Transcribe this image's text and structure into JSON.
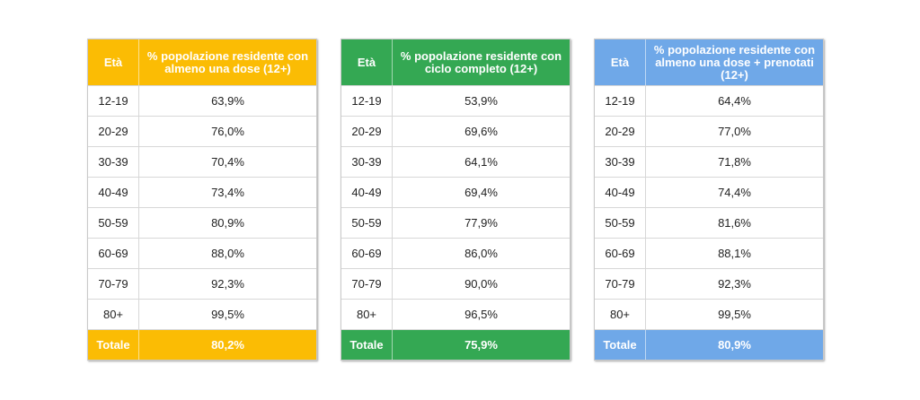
{
  "chart_data": [
    {
      "type": "table",
      "color": "#fbbc04",
      "columns": [
        "Età",
        "% popolazione residente con almeno una dose (12+)"
      ],
      "rows": [
        [
          "12-19",
          "63,9%"
        ],
        [
          "20-29",
          "76,0%"
        ],
        [
          "30-39",
          "70,4%"
        ],
        [
          "40-49",
          "73,4%"
        ],
        [
          "50-59",
          "80,9%"
        ],
        [
          "60-69",
          "88,0%"
        ],
        [
          "70-79",
          "92,3%"
        ],
        [
          "80+",
          "99,5%"
        ]
      ],
      "total": [
        "Totale",
        "80,2%"
      ]
    },
    {
      "type": "table",
      "color": "#34a853",
      "columns": [
        "Età",
        "% popolazione residente con ciclo completo (12+)"
      ],
      "rows": [
        [
          "12-19",
          "53,9%"
        ],
        [
          "20-29",
          "69,6%"
        ],
        [
          "30-39",
          "64,1%"
        ],
        [
          "40-49",
          "69,4%"
        ],
        [
          "50-59",
          "77,9%"
        ],
        [
          "60-69",
          "86,0%"
        ],
        [
          "70-79",
          "90,0%"
        ],
        [
          "80+",
          "96,5%"
        ]
      ],
      "total": [
        "Totale",
        "75,9%"
      ]
    },
    {
      "type": "table",
      "color": "#6fa8e8",
      "columns": [
        "Età",
        "% popolazione residente con almeno una dose + prenotati (12+)"
      ],
      "rows": [
        [
          "12-19",
          "64,4%"
        ],
        [
          "20-29",
          "77,0%"
        ],
        [
          "30-39",
          "71,8%"
        ],
        [
          "40-49",
          "74,4%"
        ],
        [
          "50-59",
          "81,6%"
        ],
        [
          "60-69",
          "88,1%"
        ],
        [
          "70-79",
          "92,3%"
        ],
        [
          "80+",
          "99,5%"
        ]
      ],
      "total": [
        "Totale",
        "80,9%"
      ]
    }
  ]
}
